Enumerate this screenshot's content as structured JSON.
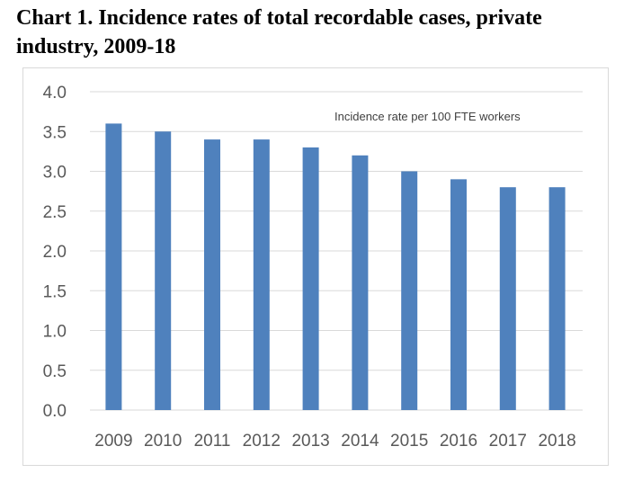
{
  "title_line1": "Chart 1. Incidence rates of total recordable cases, private",
  "title_line2": "industry, 2009-18",
  "chart_data": {
    "type": "bar",
    "title": "Chart 1. Incidence rates of total recordable cases, private industry, 2009-18",
    "categories": [
      "2009",
      "2010",
      "2011",
      "2012",
      "2013",
      "2014",
      "2015",
      "2016",
      "2017",
      "2018"
    ],
    "series": [
      {
        "name": "Incidence rate per 100 FTE workers",
        "values": [
          3.6,
          3.5,
          3.4,
          3.4,
          3.3,
          3.2,
          3.0,
          2.9,
          2.8,
          2.8
        ]
      }
    ],
    "annotation": "Incidence rate per 100 FTE workers",
    "ylim": [
      0,
      4.0
    ],
    "yticks": [
      "0.0",
      "0.5",
      "1.0",
      "1.5",
      "2.0",
      "2.5",
      "3.0",
      "3.5",
      "4.0"
    ],
    "grid": true,
    "legend": "none",
    "bar_color": "#4f81bd",
    "grid_color": "#d9d9d9"
  }
}
